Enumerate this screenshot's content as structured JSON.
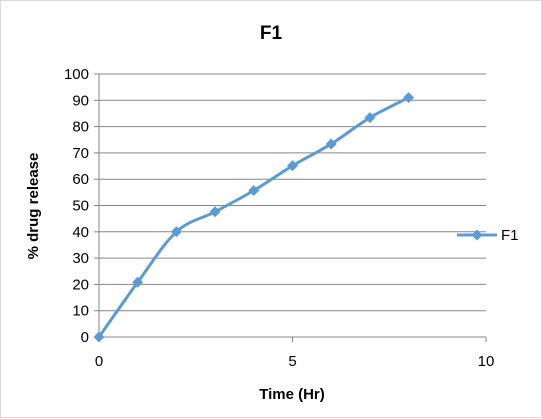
{
  "chart_data": {
    "type": "line",
    "title": "F1",
    "xlabel": "Time (Hr)",
    "ylabel": "% drug release",
    "xlim": [
      0,
      10
    ],
    "ylim": [
      0,
      100
    ],
    "x_ticks": [
      0,
      5,
      10
    ],
    "y_ticks": [
      0,
      10,
      20,
      30,
      40,
      50,
      60,
      70,
      80,
      90,
      100
    ],
    "grid": "horizontal",
    "legend_position": "right",
    "smooth": true,
    "series": [
      {
        "name": "F1",
        "color": "#5b9bd5",
        "marker": "diamond",
        "x": [
          0,
          1,
          2,
          3,
          4,
          5,
          6,
          7,
          8
        ],
        "y": [
          0,
          20.8,
          40,
          47.6,
          55.7,
          65.1,
          73.4,
          83.4,
          91
        ]
      }
    ]
  }
}
